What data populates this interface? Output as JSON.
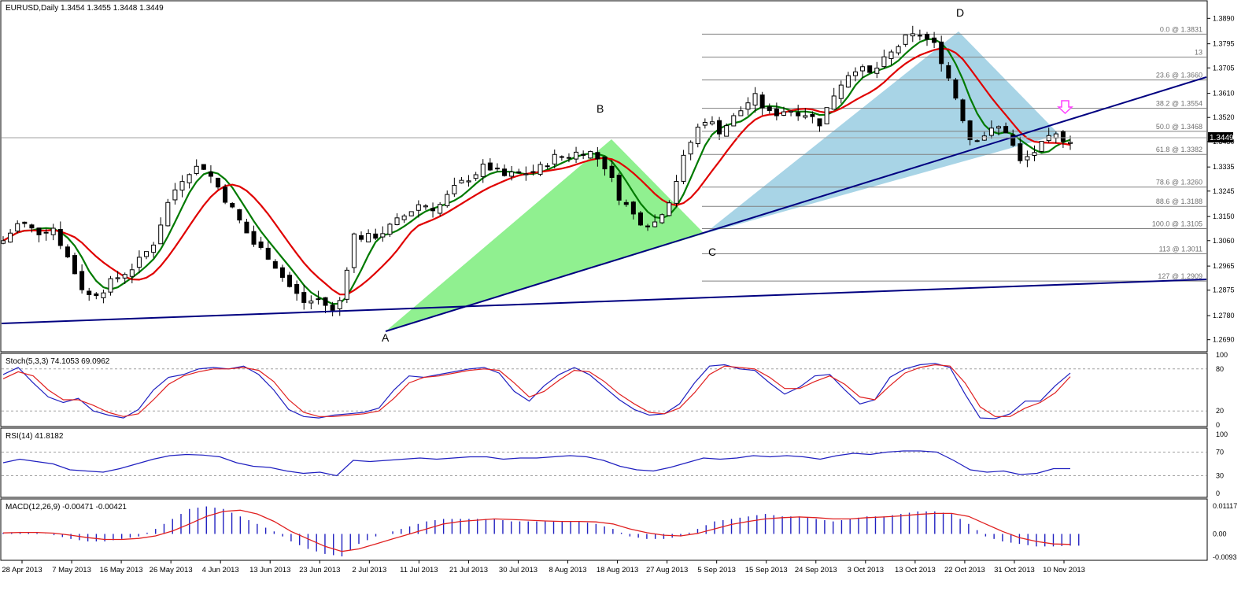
{
  "main_panel": {
    "title": "EURUSD,Daily  1.3454 1.3455 1.3448 1.3449",
    "current_price_label": "1.3449"
  },
  "pattern_labels": {
    "A": "A",
    "B": "B",
    "C": "C",
    "D": "D"
  },
  "fib_levels": [
    {
      "label": "0.0 @ 1.3831",
      "price": 1.3831
    },
    {
      "label": "13",
      "price": 1.3745
    },
    {
      "label": "23.6 @ 1.3660",
      "price": 1.366
    },
    {
      "label": "38.2 @ 1.3554",
      "price": 1.3554
    },
    {
      "label": "50.0 @ 1.3468",
      "price": 1.3468
    },
    {
      "label": "61.8 @ 1.3382",
      "price": 1.3382
    },
    {
      "label": "78.6 @ 1.3260",
      "price": 1.326
    },
    {
      "label": "88.6 @ 1.3188",
      "price": 1.3188
    },
    {
      "label": "100.0 @ 1.3105",
      "price": 1.3105
    },
    {
      "label": "113 @ 1.3011",
      "price": 1.3011
    },
    {
      "label": "127 @ 1.2909",
      "price": 1.2909
    }
  ],
  "stoch_panel": {
    "title": "Stoch(5,3,3) 74.1053 69.0962"
  },
  "rsi_panel": {
    "title": "RSI(14) 41.8182"
  },
  "macd_panel": {
    "title": "MACD(12,26,9) -0.00471 -0.00421"
  },
  "x_axis_labels": [
    "28 Apr 2013",
    "7 May 2013",
    "16 May 2013",
    "26 May 2013",
    "4 Jun 2013",
    "13 Jun 2013",
    "23 Jun 2013",
    "2 Jul 2013",
    "11 Jul 2013",
    "21 Jul 2013",
    "30 Jul 2013",
    "8 Aug 2013",
    "18 Aug 2013",
    "27 Aug 2013",
    "5 Sep 2013",
    "15 Sep 2013",
    "24 Sep 2013",
    "3 Oct 2013",
    "13 Oct 2013",
    "22 Oct 2013",
    "31 Oct 2013",
    "10 Nov 2013"
  ],
  "colors": {
    "bull_triangle": "#90f090",
    "bear_triangle": "#a8d4e6",
    "trendline": "#000080",
    "fast_ma": "#e00000",
    "slow_ma": "#007a00",
    "ma_turn": "#f0e000",
    "stoch_main": "#2020c0",
    "stoch_signal": "#e02020",
    "macd_hist": "#2020c0",
    "macd_signal": "#e02020",
    "arrow": "#ff40ff"
  },
  "chart_data": [
    {
      "type": "candlestick",
      "title": "EURUSD,Daily",
      "ylim": [
        1.2645,
        1.3935
      ],
      "y_ticks": [
        "1.3890",
        "1.3795",
        "1.3705",
        "1.3610",
        "1.3520",
        "1.3430",
        "1.3335",
        "1.3245",
        "1.3150",
        "1.3060",
        "1.2965",
        "1.2875",
        "1.2780",
        "1.2690"
      ],
      "x": [
        "28 Apr 2013",
        "7 May 2013",
        "16 May 2013",
        "26 May 2013",
        "4 Jun 2013",
        "13 Jun 2013",
        "23 Jun 2013",
        "2 Jul 2013",
        "11 Jul 2013",
        "21 Jul 2013",
        "30 Jul 2013",
        "8 Aug 2013",
        "18 Aug 2013",
        "27 Aug 2013",
        "5 Sep 2013",
        "15 Sep 2013",
        "24 Sep 2013",
        "3 Oct 2013",
        "13 Oct 2013",
        "22 Oct 2013",
        "31 Oct 2013",
        "10 Nov 2013"
      ],
      "close_path": [
        1.306,
        1.313,
        1.309,
        1.311,
        1.298,
        1.285,
        1.288,
        1.293,
        1.297,
        1.305,
        1.322,
        1.332,
        1.334,
        1.325,
        1.315,
        1.305,
        1.3,
        1.29,
        1.283,
        1.284,
        1.278,
        1.308,
        1.307,
        1.31,
        1.315,
        1.32,
        1.318,
        1.325,
        1.33,
        1.334,
        1.33,
        1.331,
        1.332,
        1.337,
        1.338,
        1.34,
        1.335,
        1.322,
        1.314,
        1.312,
        1.322,
        1.34,
        1.352,
        1.347,
        1.353,
        1.36,
        1.353,
        1.355,
        1.354,
        1.35,
        1.363,
        1.371,
        1.368,
        1.374,
        1.381,
        1.383,
        1.378,
        1.362,
        1.344,
        1.346,
        1.349,
        1.335,
        1.34,
        1.345,
        1.344
      ],
      "key_points": {
        "A": {
          "date": "8 Jul 2013",
          "price": 1.2755
        },
        "B": {
          "date": "19 Aug 2013",
          "price": 1.3452
        },
        "C": {
          "date": "5 Sep 2013",
          "price": 1.3105
        },
        "D": {
          "date": "25 Oct 2013",
          "price": 1.3831
        }
      },
      "last": 1.3449
    },
    {
      "type": "line",
      "title": "Stoch(5,3,3)",
      "ylim": [
        0,
        100
      ],
      "y_ticks": [
        "100",
        "80",
        "20",
        "0"
      ],
      "levels": [
        80,
        20
      ],
      "series": [
        {
          "name": "Main",
          "values": [
            72,
            82,
            60,
            40,
            32,
            38,
            20,
            14,
            10,
            22,
            50,
            68,
            72,
            80,
            82,
            80,
            84,
            72,
            50,
            22,
            12,
            10,
            14,
            16,
            18,
            24,
            50,
            70,
            68,
            72,
            76,
            80,
            82,
            74,
            48,
            34,
            56,
            72,
            82,
            72,
            54,
            36,
            22,
            14,
            16,
            30,
            60,
            84,
            86,
            80,
            78,
            60,
            44,
            54,
            70,
            72,
            50,
            30,
            36,
            68,
            80,
            86,
            88,
            82,
            44,
            10,
            9,
            16,
            34,
            34,
            56,
            74
          ]
        },
        {
          "name": "Signal",
          "values": [
            66,
            76,
            70,
            50,
            36,
            36,
            28,
            18,
            12,
            16,
            36,
            58,
            70,
            76,
            80,
            80,
            82,
            78,
            62,
            36,
            18,
            12,
            12,
            14,
            16,
            20,
            38,
            60,
            68,
            70,
            74,
            78,
            80,
            78,
            60,
            40,
            48,
            64,
            78,
            76,
            62,
            44,
            30,
            18,
            16,
            24,
            46,
            72,
            84,
            82,
            80,
            68,
            52,
            52,
            62,
            70,
            58,
            40,
            36,
            56,
            74,
            82,
            86,
            84,
            60,
            26,
            12,
            12,
            24,
            32,
            46,
            69
          ]
        }
      ],
      "last_main": 74.1053,
      "last_signal": 69.0962
    },
    {
      "type": "line",
      "title": "RSI(14)",
      "ylim": [
        0,
        100
      ],
      "y_ticks": [
        "100",
        "70",
        "30",
        "0"
      ],
      "levels": [
        70,
        30
      ],
      "series": [
        {
          "name": "RSI",
          "values": [
            52,
            58,
            54,
            50,
            40,
            38,
            36,
            42,
            50,
            58,
            64,
            66,
            65,
            62,
            52,
            46,
            44,
            38,
            34,
            36,
            30,
            56,
            54,
            56,
            58,
            60,
            58,
            60,
            62,
            62,
            58,
            60,
            60,
            62,
            64,
            62,
            56,
            46,
            40,
            38,
            44,
            52,
            60,
            58,
            60,
            64,
            62,
            64,
            62,
            58,
            64,
            68,
            66,
            70,
            72,
            72,
            70,
            56,
            40,
            36,
            38,
            32,
            34,
            42,
            42
          ]
        }
      ],
      "last": 41.8182
    },
    {
      "type": "bar",
      "title": "MACD(12,26,9)",
      "ylim": [
        -0.0093,
        0.01117
      ],
      "y_ticks": [
        "0.01117",
        "0.00",
        "-0.0093"
      ],
      "series": [
        {
          "name": "MACD",
          "values": [
            0.0005,
            0.0008,
            0.0004,
            -0.0005,
            -0.002,
            -0.003,
            -0.003,
            -0.002,
            -0.001,
            0.002,
            0.006,
            0.01,
            0.011,
            0.01,
            0.007,
            0.004,
            0.001,
            -0.003,
            -0.006,
            -0.008,
            -0.009,
            -0.004,
            -0.001,
            0.001,
            0.003,
            0.005,
            0.006,
            0.006,
            0.006,
            0.006,
            0.005,
            0.005,
            0.005,
            0.005,
            0.005,
            0.004,
            0.002,
            -0.001,
            -0.002,
            -0.002,
            -0.001,
            0.002,
            0.005,
            0.006,
            0.007,
            0.008,
            0.007,
            0.007,
            0.006,
            0.005,
            0.006,
            0.007,
            0.007,
            0.008,
            0.009,
            0.009,
            0.008,
            0.004,
            -0.001,
            -0.003,
            -0.004,
            -0.005,
            -0.005,
            -0.0047
          ]
        },
        {
          "name": "Signal",
          "values": [
            0.0004,
            0.0006,
            0.0006,
            0.0003,
            -0.0005,
            -0.0015,
            -0.0022,
            -0.0022,
            -0.0018,
            -0.0008,
            0.0012,
            0.004,
            0.007,
            0.009,
            0.0095,
            0.008,
            0.005,
            0.001,
            -0.002,
            -0.005,
            -0.007,
            -0.006,
            -0.004,
            -0.002,
            0.0,
            0.002,
            0.004,
            0.005,
            0.0055,
            0.006,
            0.0058,
            0.0055,
            0.0052,
            0.005,
            0.005,
            0.0048,
            0.004,
            0.002,
            0.0005,
            -0.0005,
            -0.0008,
            0.0002,
            0.002,
            0.0038,
            0.005,
            0.006,
            0.0065,
            0.0068,
            0.0065,
            0.006,
            0.006,
            0.0065,
            0.0068,
            0.0072,
            0.0078,
            0.0082,
            0.0082,
            0.007,
            0.004,
            0.001,
            -0.0015,
            -0.003,
            -0.004,
            -0.00421
          ]
        }
      ],
      "last_macd": -0.00471,
      "last_signal": -0.00421
    }
  ]
}
